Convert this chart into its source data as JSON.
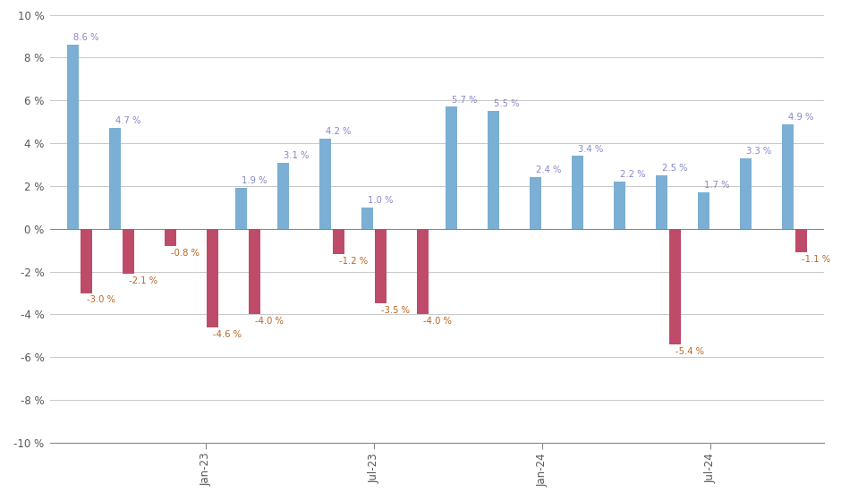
{
  "months_data": [
    {
      "label": null,
      "blue": 8.6,
      "red": -3.0
    },
    {
      "label": null,
      "blue": 4.7,
      "red": -2.1
    },
    {
      "label": null,
      "blue": 0.0,
      "red": -0.8
    },
    {
      "label": "Jan-23",
      "blue": 0.0,
      "red": -4.6
    },
    {
      "label": null,
      "blue": 1.9,
      "red": -4.0
    },
    {
      "label": null,
      "blue": 3.1,
      "red": 0.0
    },
    {
      "label": null,
      "blue": 4.2,
      "red": -1.2
    },
    {
      "label": "Jul-23",
      "blue": 1.0,
      "red": -3.5
    },
    {
      "label": null,
      "blue": 0.0,
      "red": -4.0
    },
    {
      "label": null,
      "blue": 5.7,
      "red": 0.0
    },
    {
      "label": null,
      "blue": 5.5,
      "red": 0.0
    },
    {
      "label": "Jan-24",
      "blue": 2.4,
      "red": 0.0
    },
    {
      "label": null,
      "blue": 3.4,
      "red": 0.0
    },
    {
      "label": null,
      "blue": 2.2,
      "red": 0.0
    },
    {
      "label": null,
      "blue": 2.5,
      "red": -5.4
    },
    {
      "label": "Jul-24",
      "blue": 1.7,
      "red": 0.0
    },
    {
      "label": null,
      "blue": 3.3,
      "red": 0.0
    },
    {
      "label": null,
      "blue": 4.9,
      "red": -1.1
    }
  ],
  "blue_color": "#7BAFD4",
  "red_color": "#BE4B6A",
  "background_color": "#FFFFFF",
  "grid_color": "#C8C8C8",
  "ylim": [
    -10,
    10
  ],
  "yticks": [
    -10,
    -8,
    -6,
    -4,
    -2,
    0,
    2,
    4,
    6,
    8,
    10
  ],
  "label_color_blue": "#8888CC",
  "label_color_red": "#BB6622",
  "figsize": [
    9.4,
    5.5
  ],
  "dpi": 100,
  "bar_width": 0.28,
  "bar_gap": 0.04
}
